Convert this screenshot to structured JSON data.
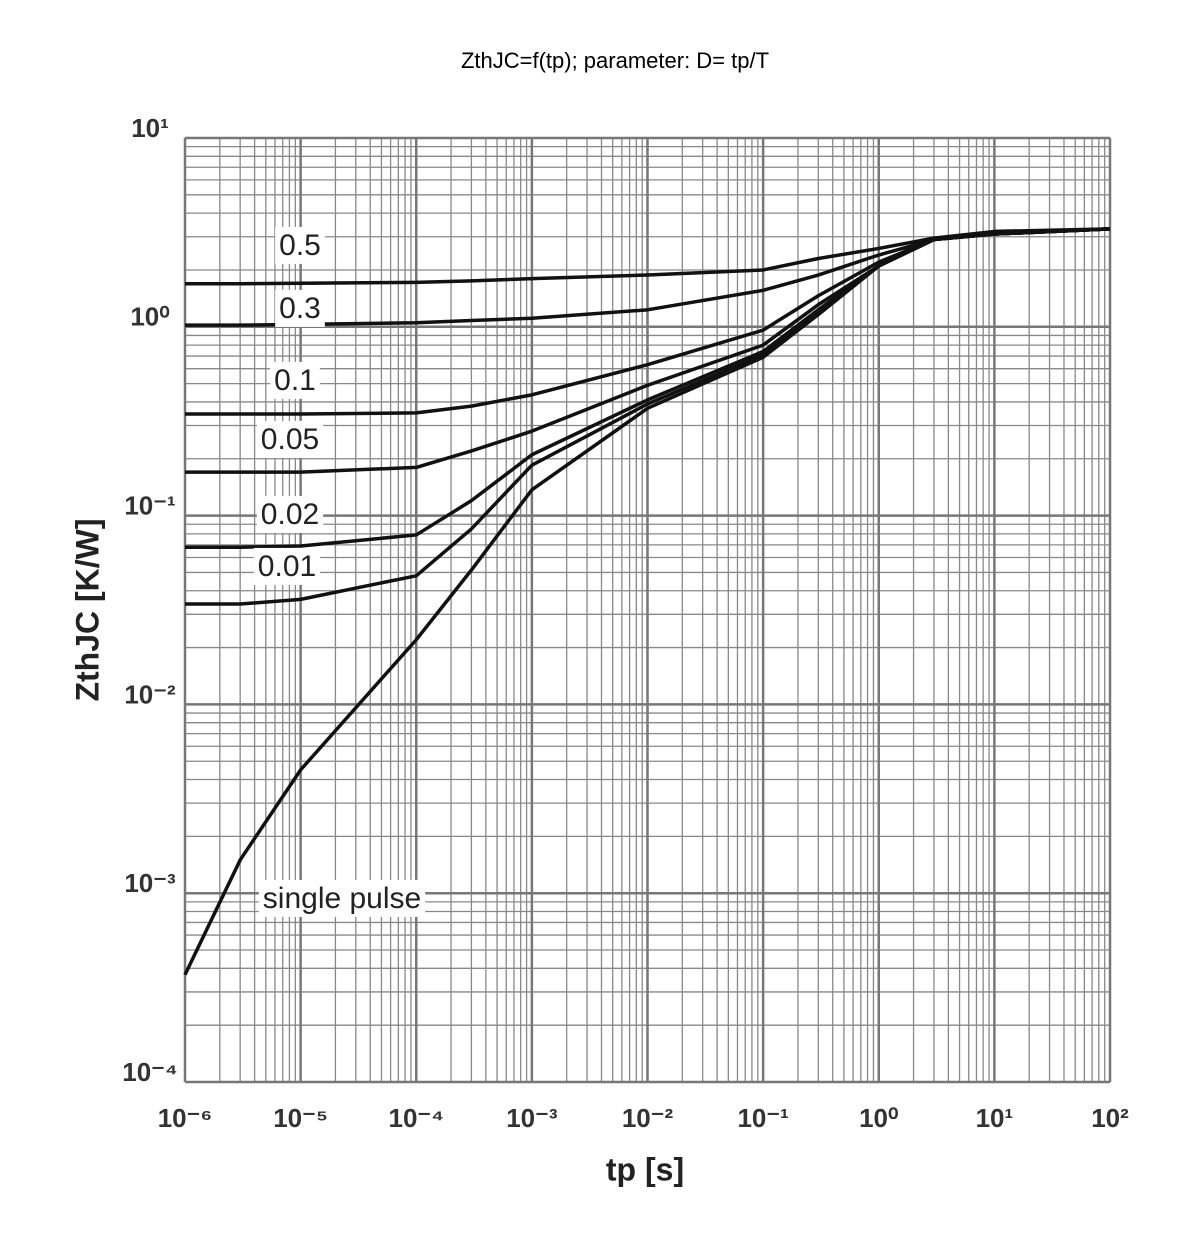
{
  "chart_data": {
    "type": "line",
    "title": "ZthJC=f(tp); parameter: D= tp/T",
    "x_label": "tp [s]",
    "y_label": "ZthJC [K/W]",
    "xscale": "log",
    "yscale": "log",
    "grid": true,
    "xlim": [
      1e-06,
      100
    ],
    "ylim": [
      0.0001,
      10
    ],
    "xticks": [
      {
        "value": 1e-06,
        "label": "10⁻⁶"
      },
      {
        "value": 1e-05,
        "label": "10⁻⁵"
      },
      {
        "value": 0.0001,
        "label": "10⁻⁴"
      },
      {
        "value": 0.001,
        "label": "10⁻³"
      },
      {
        "value": 0.01,
        "label": "10⁻²"
      },
      {
        "value": 0.1,
        "label": "10⁻¹"
      },
      {
        "value": 1,
        "label": "10⁰"
      },
      {
        "value": 10,
        "label": "10¹"
      },
      {
        "value": 100,
        "label": "10²"
      }
    ],
    "yticks": [
      {
        "value": 0.0001,
        "label": "10⁻⁴"
      },
      {
        "value": 0.001,
        "label": "10⁻³"
      },
      {
        "value": 0.01,
        "label": "10⁻²"
      },
      {
        "value": 0.1,
        "label": "10⁻¹"
      },
      {
        "value": 1,
        "label": "10⁰"
      },
      {
        "value": 10,
        "label": "10¹"
      }
    ],
    "x": [
      1e-06,
      3e-06,
      1e-05,
      0.0001,
      0.0003,
      0.001,
      0.01,
      0.1,
      0.3,
      1,
      3,
      10,
      100
    ],
    "series": [
      {
        "name": "0.5",
        "color": "#111111",
        "values": [
          1.69,
          1.69,
          1.7,
          1.72,
          1.75,
          1.8,
          1.88,
          2.0,
          2.3,
          2.6,
          2.95,
          3.2,
          3.3
        ]
      },
      {
        "name": "0.3",
        "color": "#111111",
        "values": [
          1.02,
          1.02,
          1.03,
          1.05,
          1.08,
          1.11,
          1.23,
          1.56,
          1.88,
          2.4,
          2.9,
          3.1,
          3.3
        ]
      },
      {
        "name": "0.1",
        "color": "#111111",
        "values": [
          0.345,
          0.345,
          0.345,
          0.35,
          0.38,
          0.436,
          0.63,
          0.96,
          1.46,
          2.2,
          2.9,
          3.1,
          3.3
        ]
      },
      {
        "name": "0.05",
        "color": "#111111",
        "values": [
          0.17,
          0.17,
          0.17,
          0.18,
          0.22,
          0.28,
          0.49,
          0.8,
          1.31,
          2.1,
          2.9,
          3.1,
          3.3
        ]
      },
      {
        "name": "0.02",
        "color": "#111111",
        "values": [
          0.068,
          0.068,
          0.069,
          0.079,
          0.12,
          0.21,
          0.41,
          0.74,
          1.23,
          2.1,
          2.9,
          3.1,
          3.3
        ]
      },
      {
        "name": "0.01",
        "color": "#111111",
        "values": [
          0.034,
          0.034,
          0.036,
          0.048,
          0.085,
          0.185,
          0.39,
          0.71,
          1.2,
          2.1,
          2.9,
          3.1,
          3.3
        ]
      },
      {
        "name": "single pulse",
        "color": "#111111",
        "values": [
          0.00037,
          0.0015,
          0.0045,
          0.022,
          0.0515,
          0.137,
          0.37,
          0.69,
          1.16,
          2.1,
          2.9,
          3.1,
          3.3
        ]
      }
    ]
  }
}
